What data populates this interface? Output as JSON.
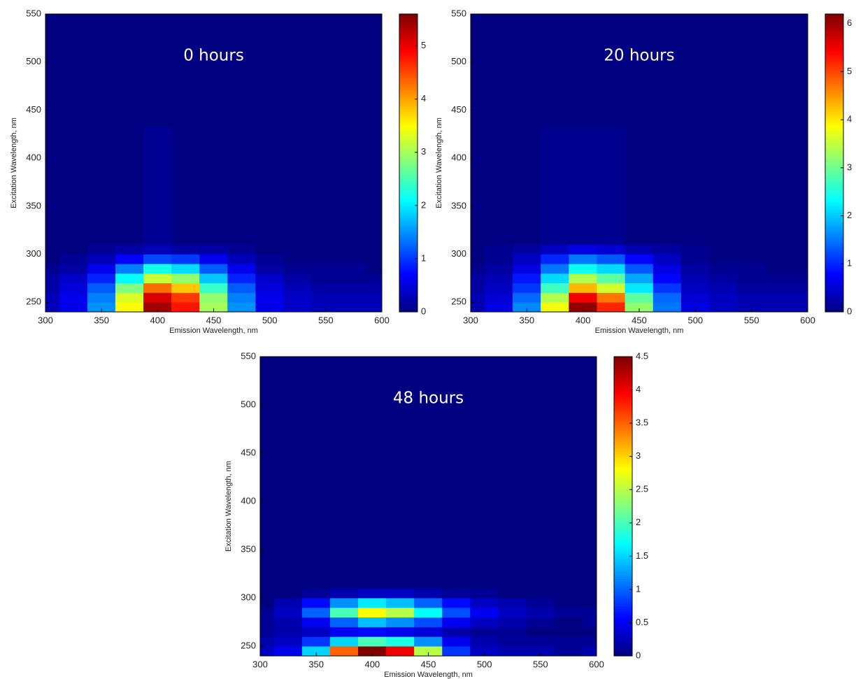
{
  "chart_data": [
    {
      "type": "contour",
      "annotation": "0 hours",
      "x_label": "Emission Wavelength, nm",
      "y_label": "Excitation Wavelength, nm",
      "colormap": "jet",
      "x": [
        300,
        325,
        350,
        375,
        400,
        425,
        450,
        475,
        500,
        525,
        550,
        575,
        600
      ],
      "y": [
        245,
        255,
        265,
        275,
        285,
        295,
        305,
        315,
        550
      ],
      "z": [
        [
          0.3,
          0.6,
          1.5,
          3.5,
          5.4,
          4.8,
          3.0,
          1.5,
          0.6,
          0.4,
          0.3,
          0.3,
          0.3
        ],
        [
          0.3,
          0.6,
          1.4,
          3.3,
          5.1,
          4.6,
          2.9,
          1.4,
          0.6,
          0.4,
          0.3,
          0.3,
          0.3
        ],
        [
          0.2,
          0.5,
          1.2,
          2.8,
          4.3,
          3.8,
          2.4,
          1.2,
          0.5,
          0.3,
          0.2,
          0.2,
          0.2
        ],
        [
          0.2,
          0.4,
          0.9,
          2.1,
          3.2,
          2.9,
          1.8,
          0.9,
          0.4,
          0.2,
          0.1,
          0.1,
          0.1
        ],
        [
          0.1,
          0.2,
          0.6,
          1.4,
          2.2,
          1.9,
          1.2,
          0.6,
          0.2,
          0.1,
          0.1,
          0.1,
          0
        ],
        [
          0,
          0.1,
          0.3,
          0.7,
          1.1,
          1.0,
          0.6,
          0.3,
          0.1,
          0,
          0,
          0,
          0
        ],
        [
          0,
          0,
          0.1,
          0.2,
          0.3,
          0.2,
          0.2,
          0.1,
          0,
          0,
          0,
          0,
          0
        ],
        [
          0,
          0,
          0,
          0,
          0.1,
          0,
          0,
          0,
          0,
          0,
          0,
          0,
          0
        ],
        [
          0,
          0,
          0,
          0,
          0,
          0,
          0,
          0,
          0,
          0,
          0,
          0,
          0
        ]
      ],
      "xlim": [
        300,
        600
      ],
      "ylim": [
        240,
        550
      ],
      "xticks": [
        300,
        350,
        400,
        450,
        500,
        550,
        600
      ],
      "yticks": [
        250,
        300,
        350,
        400,
        450,
        500,
        550
      ],
      "clim": [
        0,
        5.6
      ],
      "cticks": [
        0,
        1,
        2,
        3,
        4,
        5
      ]
    },
    {
      "type": "contour",
      "annotation": "20 hours",
      "x_label": "Emission Wavelength, nm",
      "y_label": "Excitation Wavelength, nm",
      "colormap": "jet",
      "x": [
        300,
        325,
        350,
        375,
        400,
        425,
        450,
        475,
        500,
        525,
        550,
        575,
        600
      ],
      "y": [
        245,
        255,
        265,
        275,
        285,
        295,
        305,
        315,
        550
      ],
      "z": [
        [
          0.3,
          0.6,
          1.6,
          3.8,
          6.1,
          5.2,
          3.2,
          1.5,
          0.6,
          0.4,
          0.3,
          0.3,
          0.3
        ],
        [
          0.3,
          0.5,
          1.4,
          3.4,
          5.5,
          4.7,
          2.9,
          1.4,
          0.5,
          0.4,
          0.3,
          0.3,
          0.3
        ],
        [
          0.2,
          0.4,
          1.1,
          2.7,
          4.3,
          3.6,
          2.2,
          1.1,
          0.4,
          0.3,
          0.2,
          0.2,
          0.2
        ],
        [
          0.2,
          0.3,
          0.9,
          2.1,
          3.4,
          2.9,
          1.8,
          0.8,
          0.3,
          0.2,
          0.1,
          0.1,
          0.1
        ],
        [
          0.1,
          0.2,
          0.6,
          1.5,
          2.4,
          2.1,
          1.3,
          0.6,
          0.2,
          0.1,
          0.1,
          0,
          0
        ],
        [
          0,
          0.1,
          0.4,
          1.0,
          1.5,
          1.3,
          0.8,
          0.4,
          0.1,
          0,
          0,
          0,
          0
        ],
        [
          0,
          0.1,
          0.2,
          0.4,
          0.6,
          0.5,
          0.3,
          0.2,
          0.1,
          0,
          0,
          0,
          0
        ],
        [
          0,
          0,
          0,
          0.1,
          0.1,
          0.1,
          0,
          0,
          0,
          0,
          0,
          0,
          0
        ],
        [
          0,
          0,
          0,
          0,
          0,
          0,
          0,
          0,
          0,
          0,
          0,
          0,
          0
        ]
      ],
      "xlim": [
        300,
        600
      ],
      "ylim": [
        240,
        550
      ],
      "xticks": [
        300,
        350,
        400,
        450,
        500,
        550,
        600
      ],
      "yticks": [
        250,
        300,
        350,
        400,
        450,
        500,
        550
      ],
      "clim": [
        0,
        6.2
      ],
      "cticks": [
        0,
        1,
        2,
        3,
        4,
        5,
        6
      ]
    },
    {
      "type": "contour",
      "annotation": "48 hours",
      "x_label": "Emission Wavelength, nm",
      "y_label": "Excitation Wavelength, nm",
      "colormap": "jet",
      "x": [
        300,
        325,
        350,
        375,
        400,
        425,
        450,
        475,
        500,
        525,
        550,
        575,
        600
      ],
      "y": [
        245,
        255,
        265,
        275,
        285,
        295,
        305,
        315,
        550
      ],
      "z": [
        [
          0.3,
          0.5,
          1.5,
          3.5,
          4.5,
          4.0,
          2.5,
          0.8,
          0.3,
          0.2,
          0.2,
          0.1,
          0.2
        ],
        [
          0.2,
          0.3,
          0.8,
          1.5,
          2.0,
          1.8,
          1.2,
          0.5,
          0.2,
          0.1,
          0.1,
          0.1,
          0.1
        ],
        [
          0.1,
          0.2,
          0.3,
          0.5,
          0.6,
          0.5,
          0.4,
          0.2,
          0.1,
          0.1,
          0,
          0,
          0
        ],
        [
          0.1,
          0.2,
          0.5,
          1.0,
          1.4,
          1.2,
          0.9,
          0.5,
          0.3,
          0.2,
          0.1,
          0,
          0.1
        ],
        [
          0.1,
          0.3,
          1.0,
          2.0,
          2.8,
          2.5,
          1.7,
          0.9,
          0.5,
          0.3,
          0.2,
          0.1,
          0.1
        ],
        [
          0,
          0.2,
          0.6,
          1.2,
          1.6,
          1.4,
          1.0,
          0.6,
          0.3,
          0.2,
          0.1,
          0,
          0
        ],
        [
          0,
          0,
          0.1,
          0.2,
          0.3,
          0.3,
          0.2,
          0.1,
          0.1,
          0,
          0,
          0,
          0
        ],
        [
          0,
          0,
          0,
          0,
          0,
          0,
          0,
          0,
          0,
          0,
          0,
          0,
          0
        ],
        [
          0,
          0,
          0,
          0,
          0,
          0,
          0,
          0,
          0,
          0,
          0,
          0,
          0
        ]
      ],
      "xlim": [
        300,
        600
      ],
      "ylim": [
        240,
        550
      ],
      "xticks": [
        300,
        350,
        400,
        450,
        500,
        550,
        600
      ],
      "yticks": [
        250,
        300,
        350,
        400,
        450,
        500,
        550
      ],
      "clim": [
        0,
        4.5
      ],
      "cticks": [
        0,
        0.5,
        1,
        1.5,
        2,
        2.5,
        3,
        3.5,
        4,
        4.5
      ]
    }
  ]
}
